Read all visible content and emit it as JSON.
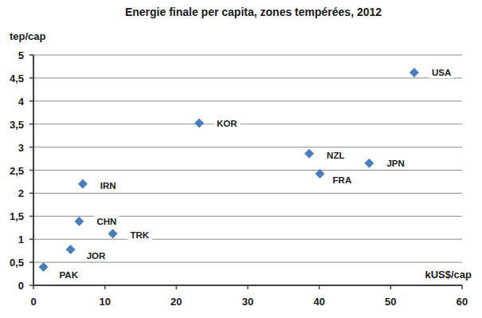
{
  "chart_data": {
    "type": "scatter",
    "title": "Energie finale per capita, zones tempérées, 2012",
    "x_label": "kUS$/cap",
    "y_label": "tep/cap",
    "categories": [
      "USA",
      "KOR",
      "NZL",
      "JPN",
      "FRA",
      "IRN",
      "CHN",
      "TRK",
      "JOR",
      "PAK"
    ],
    "x": [
      53.3,
      23.2,
      38.6,
      47.0,
      40.1,
      6.9,
      6.4,
      11.1,
      5.2,
      1.4
    ],
    "values": [
      4.62,
      3.52,
      2.86,
      2.65,
      2.42,
      2.2,
      1.39,
      1.12,
      0.78,
      0.4
    ],
    "color": "#4a7ebb",
    "marker": "diamond",
    "grid": true,
    "xlim": [
      0,
      60
    ],
    "xticks": [
      0,
      10,
      20,
      30,
      40,
      50,
      60
    ],
    "ylim": [
      0,
      5
    ],
    "yticks": [
      0,
      {
        "value": 0.5,
        "label": "0,5"
      },
      1,
      {
        "value": 1.5,
        "label": "1,5"
      },
      2,
      {
        "value": 2.5,
        "label": "2,5"
      },
      3,
      {
        "value": 3.5,
        "label": "3,5"
      },
      4,
      {
        "value": 4.5,
        "label": "4,5"
      },
      5
    ]
  }
}
